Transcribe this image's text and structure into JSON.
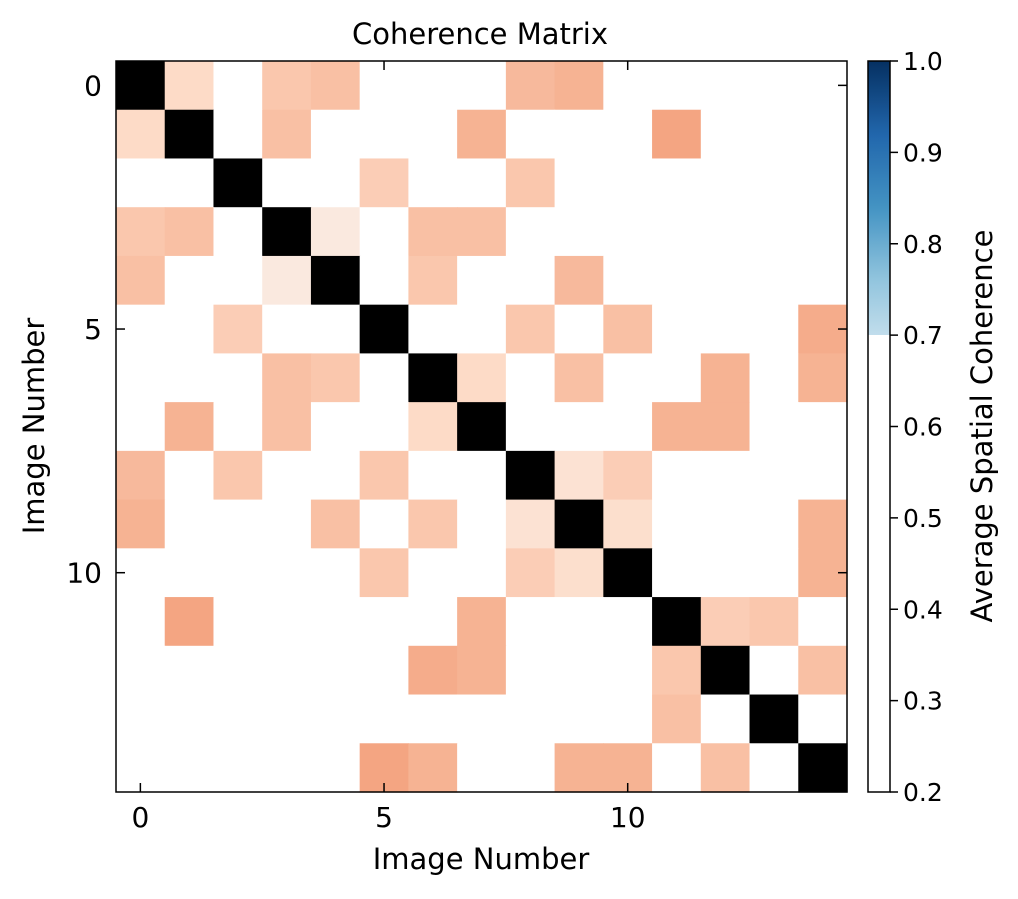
{
  "chart_data": {
    "type": "heatmap",
    "title": "Coherence Matrix",
    "xlabel": "Image Number",
    "ylabel": "Image Number",
    "x_ticks": [
      0,
      5,
      10
    ],
    "y_ticks": [
      0,
      5,
      10
    ],
    "xlim": [
      -0.5,
      14.5
    ],
    "ylim": [
      14.5,
      -0.5
    ],
    "n": 15,
    "diagonal_color": "#000000",
    "masked_color": "#ffffff",
    "colorbar": {
      "label": "Average Spatial Coherence",
      "range": [
        0.2,
        1.0
      ],
      "ticks": [
        "0.2",
        "0.3",
        "0.4",
        "0.5",
        "0.6",
        "0.7",
        "0.8",
        "0.9",
        "1.0"
      ],
      "colormap": "RdBu",
      "visible_from": 0.7
    },
    "matrix": [
      [
        1,
        0.52,
        null,
        0.49,
        0.48,
        null,
        null,
        null,
        0.47,
        0.46,
        null,
        null,
        null,
        null,
        null
      ],
      [
        0.52,
        1,
        null,
        0.48,
        null,
        null,
        null,
        0.46,
        null,
        null,
        null,
        0.44,
        null,
        null,
        null
      ],
      [
        null,
        null,
        1,
        null,
        null,
        0.5,
        null,
        null,
        0.49,
        null,
        null,
        null,
        null,
        null,
        null
      ],
      [
        0.49,
        0.48,
        null,
        1,
        0.56,
        null,
        0.48,
        0.48,
        null,
        null,
        null,
        null,
        null,
        null,
        null
      ],
      [
        0.48,
        null,
        null,
        0.56,
        1,
        null,
        0.49,
        null,
        null,
        0.47,
        null,
        null,
        null,
        null,
        null
      ],
      [
        null,
        null,
        0.5,
        null,
        null,
        1,
        null,
        null,
        0.49,
        null,
        0.48,
        null,
        null,
        null,
        0.45
      ],
      [
        null,
        null,
        null,
        0.48,
        0.49,
        null,
        1,
        0.52,
        null,
        0.48,
        null,
        null,
        0.46,
        null,
        0.46
      ],
      [
        null,
        0.46,
        null,
        0.48,
        null,
        null,
        0.52,
        1,
        null,
        null,
        null,
        0.46,
        0.46,
        null,
        null
      ],
      [
        0.47,
        null,
        0.49,
        null,
        null,
        0.49,
        null,
        null,
        1,
        0.54,
        0.5,
        null,
        null,
        null,
        null
      ],
      [
        0.46,
        null,
        null,
        null,
        0.48,
        null,
        0.49,
        null,
        0.54,
        1,
        0.53,
        null,
        null,
        null,
        0.46
      ],
      [
        null,
        null,
        null,
        null,
        null,
        0.49,
        null,
        null,
        0.5,
        0.53,
        1,
        null,
        null,
        null,
        0.46
      ],
      [
        null,
        0.44,
        null,
        null,
        null,
        null,
        null,
        0.46,
        null,
        null,
        null,
        1,
        0.5,
        0.49,
        null
      ],
      [
        null,
        null,
        null,
        null,
        null,
        null,
        0.45,
        0.46,
        null,
        null,
        null,
        0.49,
        1,
        null,
        0.48
      ],
      [
        null,
        null,
        null,
        null,
        null,
        null,
        null,
        null,
        null,
        null,
        null,
        0.48,
        null,
        1,
        null
      ],
      [
        null,
        null,
        null,
        null,
        null,
        0.44,
        0.46,
        null,
        null,
        0.46,
        0.46,
        null,
        0.48,
        null,
        1
      ]
    ]
  }
}
